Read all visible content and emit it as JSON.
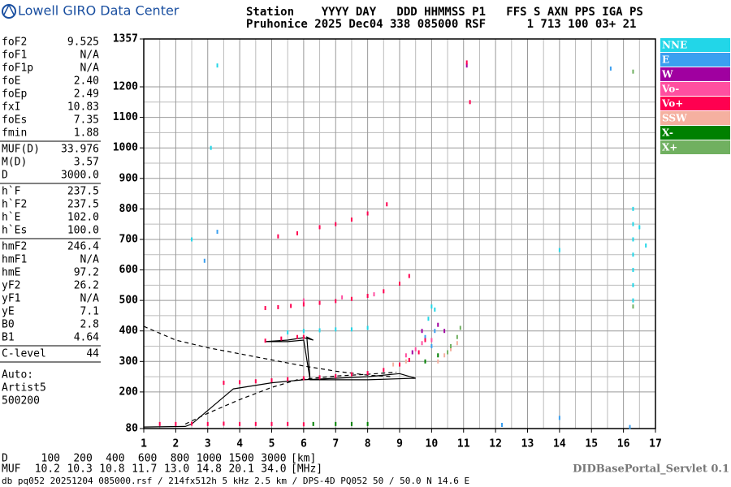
{
  "header": {
    "brand": "Lowell GIRO Data Center",
    "line1": "Station    YYYY DAY   DDD HHMMSS P1   FFS S AXN PPS IGA PS",
    "line2": "Pruhonice 2025 Dec04 338 085000 RSF      1 713 100 03+ 21"
  },
  "parameters": [
    [
      {
        "name": "foF2",
        "value": "9.525"
      },
      {
        "name": "foF1",
        "value": "N/A"
      },
      {
        "name": "foF1p",
        "value": "N/A"
      },
      {
        "name": "foE",
        "value": "2.40"
      },
      {
        "name": "foEp",
        "value": "2.49"
      },
      {
        "name": "fxI",
        "value": "10.83"
      },
      {
        "name": "foEs",
        "value": "7.35"
      },
      {
        "name": "fmin",
        "value": "1.88"
      }
    ],
    [
      {
        "name": "MUF(D)",
        "value": "33.976"
      },
      {
        "name": "M(D)",
        "value": "3.57"
      },
      {
        "name": "D",
        "value": "3000.0"
      }
    ],
    [
      {
        "name": "h`F",
        "value": "237.5"
      },
      {
        "name": "h`F2",
        "value": "237.5"
      },
      {
        "name": "h`E",
        "value": "102.0"
      },
      {
        "name": "h`Es",
        "value": "100.0"
      }
    ],
    [
      {
        "name": "hmF2",
        "value": "246.4"
      },
      {
        "name": "hmF1",
        "value": "N/A"
      },
      {
        "name": "hmE",
        "value": "97.2"
      },
      {
        "name": "yF2",
        "value": "26.2"
      },
      {
        "name": "yF1",
        "value": "N/A"
      },
      {
        "name": "yE",
        "value": "7.1"
      },
      {
        "name": "B0",
        "value": "2.8"
      },
      {
        "name": "B1",
        "value": "4.64"
      }
    ],
    [
      {
        "name": "C-level",
        "value": "44"
      }
    ]
  ],
  "autoscaling": [
    "Auto:",
    "Artist5",
    "500200"
  ],
  "muf_table": {
    "d_label": "D",
    "d": [
      "100",
      "200",
      "400",
      "600",
      "800",
      "1000",
      "1500",
      "3000"
    ],
    "d_unit": "[km]",
    "muf_label": "MUF",
    "muf": [
      "10.2",
      "10.3",
      "10.8",
      "11.7",
      "13.0",
      "14.8",
      "20.1",
      "34.0"
    ],
    "muf_unit": "[MHz]"
  },
  "servlet": "DIDBasePortal_Servlet 0.1",
  "footer": "db pq052 20251204 085000.rsf / 214fx512h 5 kHz 2.5 km / DPS-4D PQ052 50 / 50.0 N 14.6 E",
  "chart_data": {
    "type": "scatter",
    "xlim": [
      1,
      17
    ],
    "xticks": [
      1,
      2,
      3,
      4,
      5,
      6,
      7,
      8,
      9,
      10,
      11,
      12,
      13,
      14,
      15,
      16,
      17
    ],
    "ylim": [
      80,
      1357
    ],
    "yticks": [
      80,
      200,
      300,
      400,
      500,
      600,
      700,
      800,
      900,
      1000,
      1100,
      1200,
      1357
    ],
    "grid": true,
    "series": [
      {
        "name": "NNE",
        "color": "#22d6e8",
        "x": [
          5.5,
          6,
          6.5,
          7,
          7.5,
          8,
          9.9,
          10,
          10.1,
          16.3,
          16.3,
          16.3,
          16.3,
          16.3,
          16.3,
          16.3,
          16.5,
          16.7,
          14,
          3.1,
          3.3,
          2.5
        ],
        "y": [
          395,
          400,
          402,
          405,
          405,
          410,
          440,
          480,
          470,
          800,
          750,
          700,
          650,
          600,
          550,
          500,
          740,
          680,
          665,
          1000,
          1270,
          700
        ]
      },
      {
        "name": "E",
        "color": "#3a9ff0",
        "x": [
          10,
          10.1,
          9.8,
          2.9,
          3.3,
          14,
          12.2,
          16.2,
          15.6
        ],
        "y": [
          350,
          400,
          380,
          630,
          725,
          115,
          92,
          85,
          1260
        ]
      },
      {
        "name": "W",
        "color": "#a000a0",
        "x": [
          9.4,
          9.7,
          10.2,
          10.4,
          11.1
        ],
        "y": [
          330,
          400,
          420,
          400,
          1270
        ]
      },
      {
        "name": "Vo-",
        "color": "#ff4fa0",
        "x": [
          9.2,
          9.5,
          9.7,
          10,
          6,
          7.2,
          8.2
        ],
        "y": [
          320,
          340,
          360,
          370,
          500,
          510,
          520
        ]
      },
      {
        "name": "Vo+",
        "color": "#ff0050",
        "x": [
          3.5,
          4,
          4.5,
          5,
          5.5,
          6,
          6.5,
          7,
          7.5,
          8,
          8.5,
          9,
          9.3,
          9.6,
          9.8,
          4.8,
          5.2,
          5.6,
          6,
          6.5,
          7,
          7.5,
          8,
          8.5,
          9,
          9.3,
          5.2,
          5.8,
          6.5,
          7,
          7.5,
          8,
          8.6,
          1.5,
          2,
          2.5,
          3,
          3.5,
          4,
          4.5,
          5,
          5.5,
          6,
          4.8,
          5.3,
          5.8,
          6,
          11.1,
          11.2
        ],
        "y": [
          230,
          232,
          235,
          238,
          242,
          245,
          248,
          252,
          258,
          262,
          272,
          290,
          305,
          330,
          370,
          475,
          478,
          482,
          487,
          492,
          498,
          505,
          515,
          530,
          555,
          580,
          710,
          720,
          740,
          750,
          765,
          785,
          815,
          95,
          95,
          96,
          95,
          96,
          95,
          95,
          95,
          95,
          94,
          368,
          375,
          380,
          380,
          1280,
          1150
        ]
      },
      {
        "name": "SSW",
        "color": "#f5b0a0",
        "x": [
          10.2,
          10.4,
          10.6,
          10.8,
          8.8,
          9.2
        ],
        "y": [
          300,
          320,
          340,
          360,
          290,
          300
        ]
      },
      {
        "name": "X-",
        "color": "#008000",
        "x": [
          7,
          7.5,
          8,
          6.3,
          9.8,
          10.2
        ],
        "y": [
          95,
          95,
          95,
          95,
          300,
          320
        ]
      },
      {
        "name": "X+",
        "color": "#70b060",
        "x": [
          10.6,
          10.8,
          10.9,
          16.3,
          16.3,
          10.5
        ],
        "y": [
          350,
          380,
          410,
          1250,
          480,
          330
        ]
      }
    ],
    "lines": [
      {
        "style": "dashed",
        "x": [
          1,
          2,
          3,
          4,
          5,
          6,
          7,
          8,
          8.8
        ],
        "y": [
          415,
          370,
          345,
          325,
          305,
          285,
          268,
          255,
          250
        ]
      },
      {
        "style": "dashed",
        "x": [
          2.3,
          3,
          4,
          5,
          5.8,
          7,
          8,
          8.9
        ],
        "y": [
          95,
          130,
          175,
          215,
          240,
          252,
          258,
          265
        ]
      },
      {
        "style": "solid",
        "x": [
          1,
          2.3,
          2.5,
          3.8,
          5,
          6,
          7,
          8,
          9,
          9.5,
          8,
          6.2,
          6,
          5.5,
          4.8,
          5.5,
          6,
          6.3,
          6.1,
          6.2
        ],
        "y": [
          85,
          87,
          95,
          210,
          230,
          240,
          245,
          250,
          260,
          245,
          240,
          240,
          370,
          365,
          365,
          370,
          378,
          370,
          380,
          240
        ]
      }
    ]
  }
}
